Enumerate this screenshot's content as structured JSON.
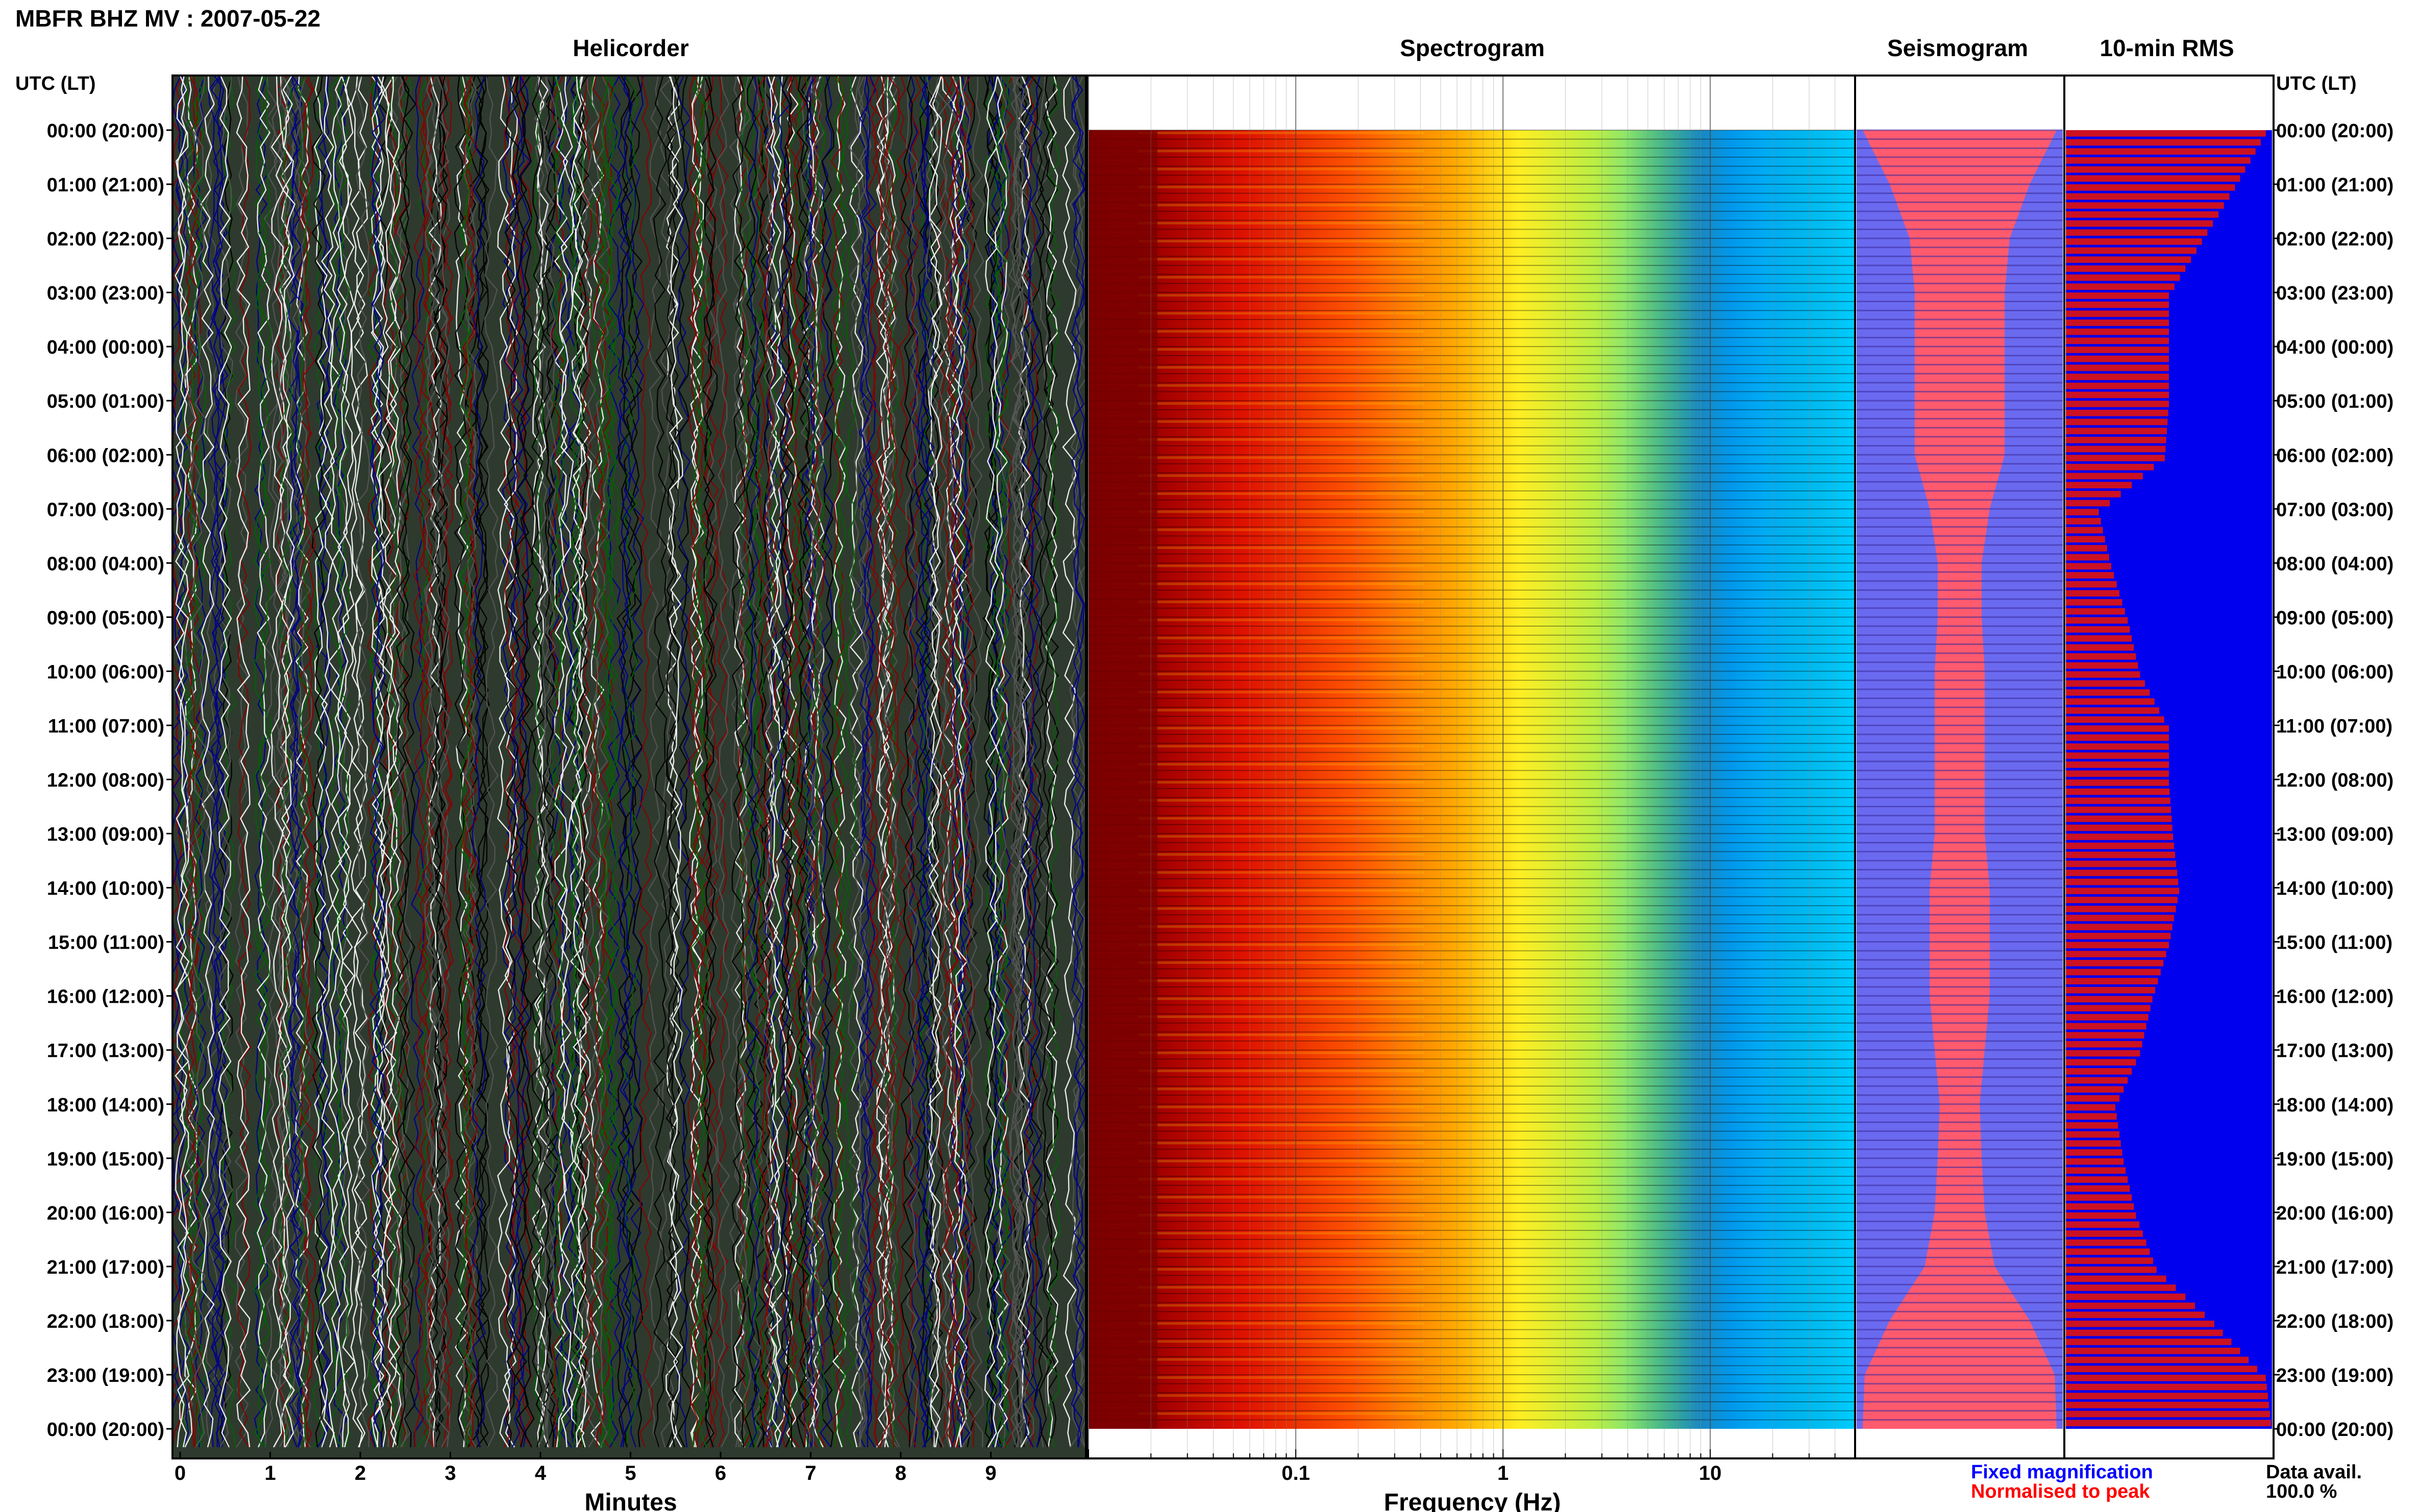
{
  "title": "MBFR BHZ MV : 2007-05-22",
  "panels": {
    "helicorder": "Helicorder",
    "spectrogram": "Spectrogram",
    "seismogram": "Seismogram",
    "rms": "10-min RMS"
  },
  "axes": {
    "left_header": "UTC (LT)",
    "right_header": "UTC (LT)",
    "helicorder_xlabel": "Minutes",
    "spectrogram_xlabel": "Frequency (Hz)"
  },
  "time_labels": [
    "00:00 (20:00)",
    "01:00 (21:00)",
    "02:00 (22:00)",
    "03:00 (23:00)",
    "04:00 (00:00)",
    "05:00 (01:00)",
    "06:00 (02:00)",
    "07:00 (03:00)",
    "08:00 (04:00)",
    "09:00 (05:00)",
    "10:00 (06:00)",
    "11:00 (07:00)",
    "12:00 (08:00)",
    "13:00 (09:00)",
    "14:00 (10:00)",
    "15:00 (11:00)",
    "16:00 (12:00)",
    "17:00 (13:00)",
    "18:00 (14:00)",
    "19:00 (15:00)",
    "20:00 (16:00)",
    "21:00 (17:00)",
    "22:00 (18:00)",
    "23:00 (19:00)",
    "00:00 (20:00)"
  ],
  "legend": {
    "fixed": "Fixed magnification",
    "normalised": "Normalised to peak",
    "fixed_color": "#0000ff",
    "normalised_color": "#ff0000"
  },
  "data_avail": {
    "label": "Data avail.",
    "value": "100.0 %"
  },
  "colors": {
    "helicorder_traces": [
      "#000000",
      "#8b0000",
      "#006400",
      "#00008b",
      "#ffffff",
      "#555555"
    ],
    "rms_background": "#0000ee",
    "rms_bar": "#cc1122",
    "seis_background": "#6a6af0",
    "seis_envelope": "#ff5a6e"
  },
  "chart_data": [
    {
      "type": "line",
      "name": "helicorder",
      "xlabel": "Minutes",
      "xlim": [
        0,
        10
      ],
      "xticks": [
        0,
        1,
        2,
        3,
        4,
        5,
        6,
        7,
        8,
        9
      ],
      "ylabel": "UTC (LT)",
      "rows": 144,
      "row_minutes": 10
    },
    {
      "type": "heatmap",
      "name": "spectrogram",
      "xlabel": "Frequency (Hz)",
      "xscale": "log",
      "xlim": [
        0.01,
        50
      ],
      "xticks": [
        0.1,
        1,
        10
      ],
      "xtick_labels": [
        "0.1",
        "1",
        "10"
      ],
      "colormap": "jet",
      "rows": 144
    },
    {
      "type": "area",
      "name": "seismogram",
      "hours": [
        0,
        1,
        2,
        3,
        4,
        5,
        6,
        7,
        8,
        9,
        10,
        11,
        12,
        13,
        14,
        15,
        16,
        17,
        18,
        19,
        20,
        21,
        22,
        23,
        24
      ],
      "half_width_fraction": [
        0.97,
        0.7,
        0.5,
        0.45,
        0.45,
        0.45,
        0.45,
        0.3,
        0.22,
        0.22,
        0.25,
        0.25,
        0.25,
        0.25,
        0.3,
        0.3,
        0.3,
        0.25,
        0.2,
        0.22,
        0.25,
        0.35,
        0.7,
        0.95,
        0.97
      ]
    },
    {
      "type": "bar",
      "name": "10-min RMS",
      "hours": [
        0,
        1,
        2,
        3,
        4,
        5,
        6,
        7,
        8,
        9,
        10,
        11,
        12,
        13,
        14,
        15,
        16,
        17,
        18,
        19,
        20,
        21,
        22,
        23,
        24
      ],
      "values_fraction": [
        0.97,
        0.82,
        0.66,
        0.5,
        0.5,
        0.5,
        0.48,
        0.16,
        0.22,
        0.3,
        0.36,
        0.5,
        0.5,
        0.52,
        0.55,
        0.5,
        0.42,
        0.36,
        0.24,
        0.28,
        0.34,
        0.44,
        0.72,
        0.97,
        1.0
      ]
    }
  ]
}
